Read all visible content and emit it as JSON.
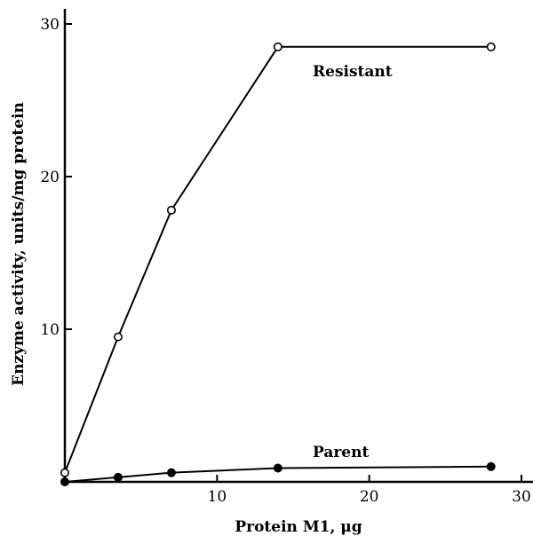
{
  "chart_data": {
    "type": "line",
    "xlabel": "Protein M1, μg",
    "ylabel": "Enzyme activity, units/mg protein",
    "xlim": [
      0,
      30
    ],
    "ylim": [
      0,
      30
    ],
    "xticks": [
      10,
      20,
      30
    ],
    "yticks": [
      10,
      20,
      30
    ],
    "grid": false,
    "series": [
      {
        "name": "Resistant",
        "marker": "open-circle",
        "color": "#000000",
        "x": [
          0,
          3.5,
          7,
          14,
          28
        ],
        "y": [
          0.6,
          9.5,
          17.8,
          28.5,
          28.5
        ]
      },
      {
        "name": "Parent",
        "marker": "filled-circle",
        "color": "#000000",
        "x": [
          0,
          3.5,
          7,
          14,
          28
        ],
        "y": [
          0,
          0.3,
          0.6,
          0.9,
          1.0
        ]
      }
    ]
  }
}
